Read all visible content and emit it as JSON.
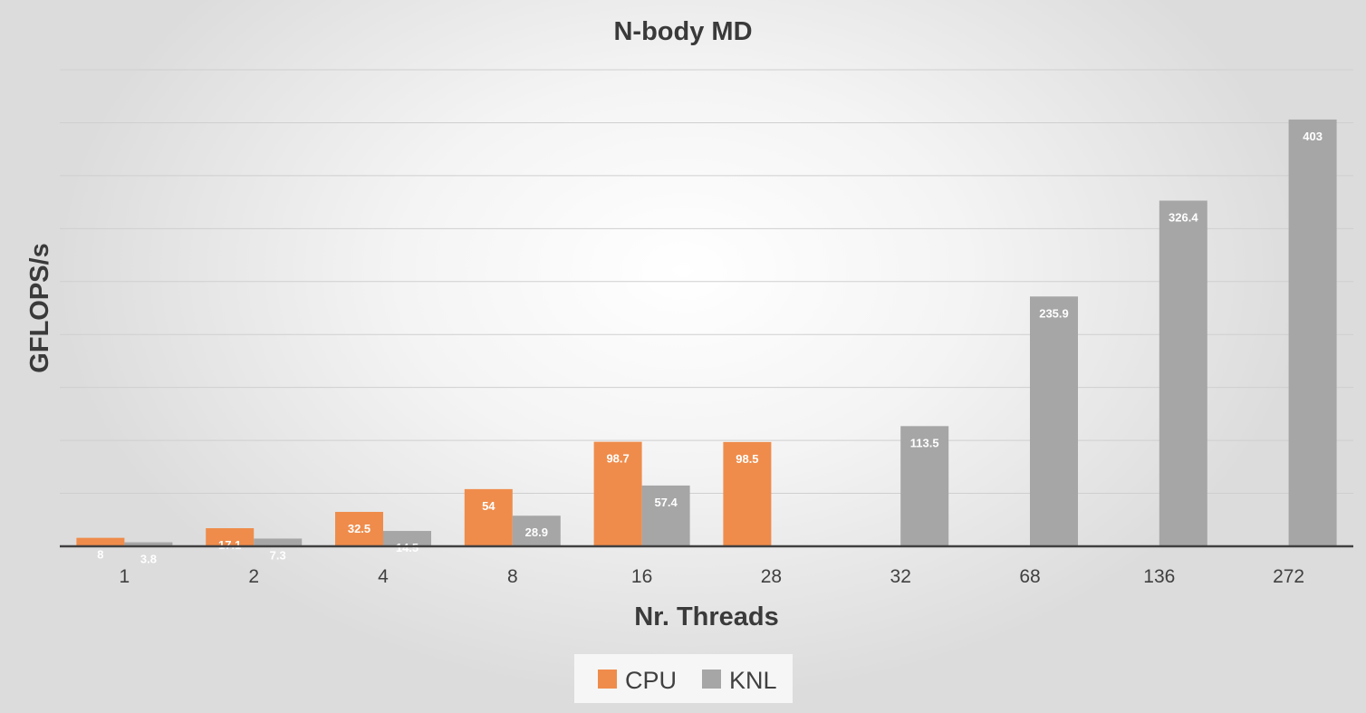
{
  "chart_data": {
    "type": "bar",
    "title": "N-body MD",
    "xlabel": "Nr. Threads",
    "ylabel": "GFLOPS/s",
    "categories": [
      "1",
      "2",
      "4",
      "8",
      "16",
      "28",
      "32",
      "68",
      "136",
      "272"
    ],
    "series": [
      {
        "name": "CPU",
        "color": "#ef8c4b",
        "values": [
          8,
          17.1,
          32.5,
          54,
          98.7,
          98.5,
          null,
          null,
          null,
          null
        ],
        "labels": [
          "8",
          "17.1",
          "32.5",
          "54",
          "98.7",
          "98.5",
          "",
          "",
          "",
          ""
        ]
      },
      {
        "name": "KNL",
        "color": "#a6a6a6",
        "values": [
          3.8,
          7.3,
          14.5,
          28.9,
          57.4,
          null,
          113.5,
          235.9,
          326.4,
          403
        ],
        "labels": [
          "3.8",
          "7.3",
          "14.5",
          "28.9",
          "57.4",
          "",
          "113.5",
          "235.9",
          "326.4",
          "403"
        ]
      }
    ],
    "ylim": [
      0,
      450
    ],
    "gridlines": true,
    "y_tick_labels_shown": false,
    "legend_position": "bottom-center"
  }
}
